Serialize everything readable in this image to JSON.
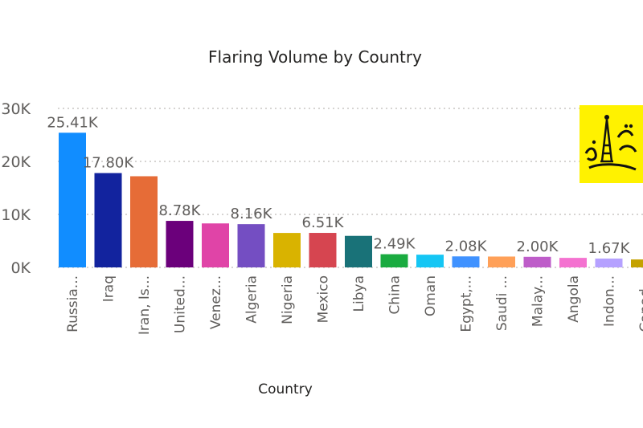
{
  "chart_data": {
    "type": "bar",
    "title": "Flaring Volume by Country",
    "xlabel": "Country",
    "ylabel": "",
    "ylim": [
      0,
      30000
    ],
    "y_ticks": [
      "0K",
      "10K",
      "20K",
      "30K"
    ],
    "grid": true,
    "categories": [
      "Russia...",
      "Iraq",
      "Iran, Is...",
      "United...",
      "Venez...",
      "Algeria",
      "Nigeria",
      "Mexico",
      "Libya",
      "China",
      "Oman",
      "Egypt,...",
      "Saudi ...",
      "Malay...",
      "Angola",
      "Indon...",
      "Canad..."
    ],
    "values": [
      25410,
      17800,
      17200,
      8780,
      8300,
      8160,
      6500,
      6510,
      5950,
      2490,
      2400,
      2080,
      2050,
      2000,
      1800,
      1670,
      1500
    ],
    "data_labels": [
      "25.41K",
      "17.80K",
      "",
      "8.78K",
      "",
      "8.16K",
      "",
      "6.51K",
      "",
      "2.49K",
      "",
      "2.08K",
      "",
      "2.00K",
      "",
      "1.67K",
      ""
    ],
    "colors": [
      "#118dff",
      "#12239e",
      "#e66c37",
      "#6b007b",
      "#e044a7",
      "#744ec2",
      "#d9b300",
      "#d64550",
      "#197278",
      "#1aab40",
      "#15c6f4",
      "#4092ff",
      "#ffa058",
      "#be5dc9",
      "#f472d0",
      "#b5a1ff",
      "#c4a200"
    ]
  },
  "logo": {
    "text": "نفت",
    "color": "#fff200"
  }
}
